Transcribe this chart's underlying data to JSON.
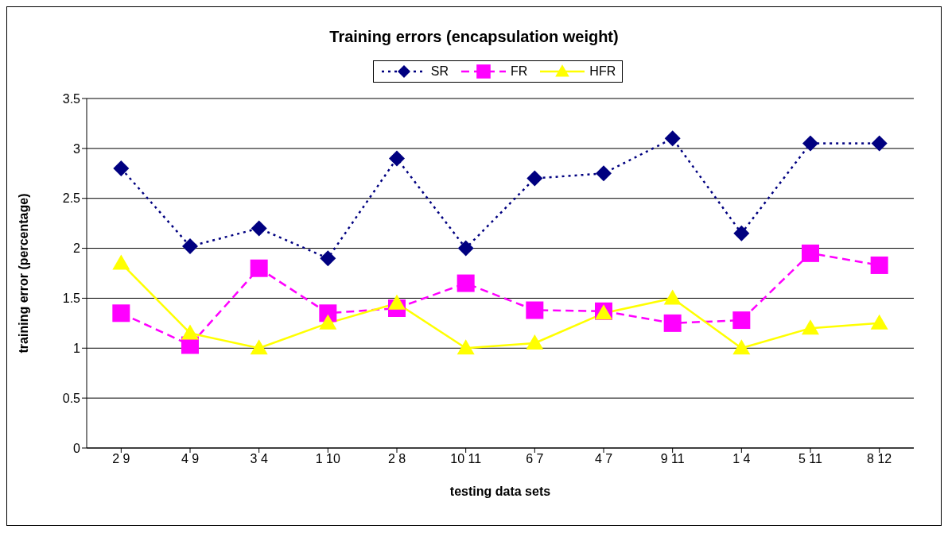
{
  "chart_data": {
    "type": "line",
    "title": "Training errors (encapsulation weight)",
    "xlabel": "testing data sets",
    "ylabel": "training error (percentage)",
    "categories": [
      "2 9",
      "4 9",
      "3 4",
      "1 10",
      "2 8",
      "10 11",
      "6 7",
      "4 7",
      "9 11",
      "1 4",
      "5 11",
      "8 12"
    ],
    "series": [
      {
        "name": "SR",
        "color": "#000080",
        "marker": "diamond",
        "line_style": "dotted",
        "values": [
          2.8,
          2.02,
          2.2,
          1.9,
          2.9,
          2.0,
          2.7,
          2.75,
          3.1,
          2.15,
          3.05,
          3.05
        ]
      },
      {
        "name": "FR",
        "color": "#ff00ff",
        "marker": "square",
        "line_style": "dashed",
        "values": [
          1.35,
          1.03,
          1.8,
          1.35,
          1.4,
          1.65,
          1.38,
          1.37,
          1.25,
          1.28,
          1.95,
          1.83
        ]
      },
      {
        "name": "HFR",
        "color": "#ffff00",
        "marker": "triangle",
        "line_style": "solid",
        "values": [
          1.85,
          1.15,
          1.0,
          1.25,
          1.45,
          1.0,
          1.05,
          1.35,
          1.5,
          1.0,
          1.2,
          1.25
        ]
      }
    ],
    "ylim": [
      0,
      3.5
    ],
    "yticks": [
      0,
      0.5,
      1,
      1.5,
      2,
      2.5,
      3,
      3.5
    ],
    "grid": "y",
    "legend": "top"
  }
}
